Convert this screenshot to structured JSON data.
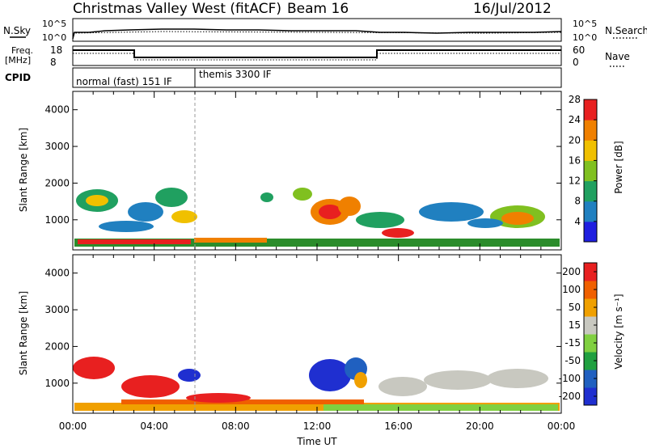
{
  "header": {
    "title": "Christmas Valley West (fitACF)",
    "beam": "Beam 16",
    "date": "16/Jul/2012"
  },
  "top_panels": {
    "nsky_label": "N.Sky",
    "nsearch_label": "N.Search",
    "nsky_ticks": [
      "10^5",
      "10^0"
    ],
    "nsearch_ticks": [
      "10^5",
      "10^0"
    ],
    "freq_label_1": "Freq.",
    "freq_label_2": "[MHz]",
    "freq_ticks": [
      "18",
      "8"
    ],
    "nave_label": "Nave",
    "nave_ticks": [
      "60",
      "0"
    ],
    "cpid_label": "CPID",
    "cpid_mode_1": "normal (fast) 151 IF",
    "cpid_mode_2": "themis 3300 IF"
  },
  "chart_data": [
    {
      "type": "heatmap",
      "title": "",
      "ylabel": "Slant Range [km]",
      "ylim": [
        180,
        4500
      ],
      "yticks": [
        "1000",
        "2000",
        "3000",
        "4000"
      ],
      "colorbar_label": "Power [dB]",
      "colorbar_ticks": [
        "4",
        "8",
        "12",
        "16",
        "20",
        "24",
        "28"
      ],
      "colorbar_colors": [
        "#1f1fe0",
        "#2080c0",
        "#20a060",
        "#80c020",
        "#f0c000",
        "#f08000",
        "#e82020"
      ]
    },
    {
      "type": "heatmap",
      "title": "",
      "xlabel": "Time UT",
      "ylabel": "Slant Range [km]",
      "ylim": [
        180,
        4500
      ],
      "yticks": [
        "1000",
        "2000",
        "3000",
        "4000"
      ],
      "xticks": [
        "00:00",
        "04:00",
        "08:00",
        "12:00",
        "16:00",
        "20:00",
        "00:00"
      ],
      "colorbar_label": "Velocity [m s⁻¹]",
      "colorbar_ticks": [
        "200",
        "100",
        "50",
        "15",
        "-15",
        "-50",
        "-100",
        "-200"
      ],
      "colorbar_colors": [
        "#1f2fd0",
        "#2060c0",
        "#20a040",
        "#80d040",
        "#c8c8c0",
        "#f0a000",
        "#f06000",
        "#e82020"
      ]
    }
  ]
}
